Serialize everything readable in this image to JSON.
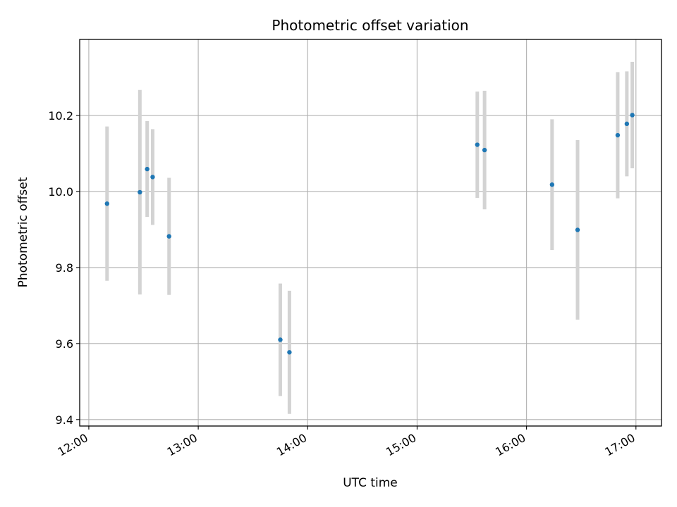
{
  "chart_data": {
    "type": "scatter",
    "title": "Photometric offset variation",
    "xlabel": "UTC time",
    "ylabel": "Photometric offset",
    "x_tick_labels": [
      "12:00",
      "13:00",
      "14:00",
      "15:00",
      "16:00",
      "17:00"
    ],
    "y_tick_labels": [
      "9.4",
      "9.6",
      "9.8",
      "10.0",
      "10.2"
    ],
    "xlim": [
      "11:55",
      "17:14"
    ],
    "ylim": [
      9.383,
      10.4
    ],
    "grid": true,
    "points": [
      {
        "x": "12:10",
        "y": 9.968,
        "err": 0.203
      },
      {
        "x": "12:28",
        "y": 9.998,
        "err": 0.269
      },
      {
        "x": "12:32",
        "y": 10.059,
        "err": 0.126
      },
      {
        "x": "12:35",
        "y": 10.038,
        "err": 0.126
      },
      {
        "x": "12:44",
        "y": 9.882,
        "err": 0.154
      },
      {
        "x": "13:45",
        "y": 9.61,
        "err": 0.148
      },
      {
        "x": "13:50",
        "y": 9.577,
        "err": 0.162
      },
      {
        "x": "15:33",
        "y": 10.123,
        "err": 0.14
      },
      {
        "x": "15:37",
        "y": 10.109,
        "err": 0.156
      },
      {
        "x": "16:14",
        "y": 10.018,
        "err": 0.172
      },
      {
        "x": "16:28",
        "y": 9.899,
        "err": 0.236
      },
      {
        "x": "16:50",
        "y": 10.148,
        "err": 0.166
      },
      {
        "x": "16:55",
        "y": 10.178,
        "err": 0.138
      },
      {
        "x": "16:58",
        "y": 10.201,
        "err": 0.14
      }
    ],
    "colors": {
      "marker": "#1f77b4",
      "errorbar": "#d3d3d3",
      "grid": "#b0b0b0"
    }
  }
}
